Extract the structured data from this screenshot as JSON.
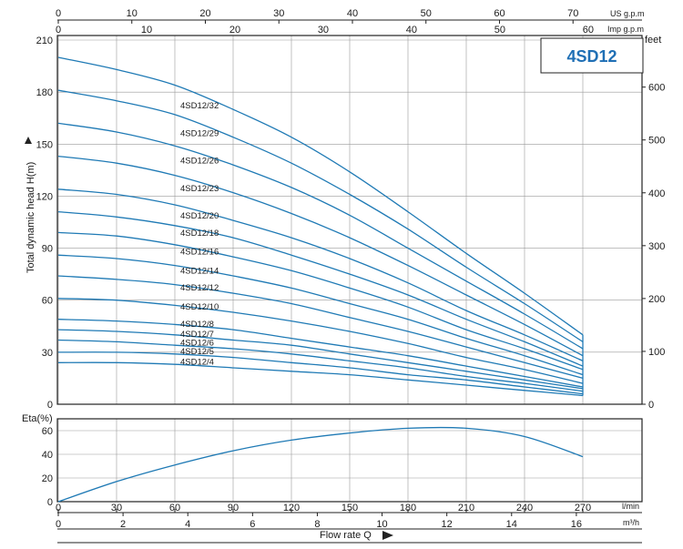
{
  "chart_data": [
    {
      "type": "line",
      "title": "4SD12",
      "ylabel": "Total dynamic head H(m)",
      "ylim": [
        0,
        210
      ],
      "xlim": [
        0,
        270
      ],
      "x_unit": "l/min",
      "y_ticks": [
        0,
        30,
        60,
        90,
        120,
        150,
        180,
        210
      ],
      "right_axis": {
        "label": "feet",
        "ticks": [
          0,
          100,
          200,
          300,
          400,
          500,
          600
        ]
      },
      "top_axes": [
        {
          "label": "US g.p.m",
          "ticks": [
            0,
            10,
            20,
            30,
            40,
            50,
            60,
            70
          ]
        },
        {
          "label": "Imp g.p.m",
          "ticks": [
            0,
            10,
            20,
            30,
            40,
            50,
            60
          ]
        }
      ],
      "grid": true,
      "x": [
        0,
        30,
        60,
        90,
        120,
        150,
        180,
        210,
        240,
        270
      ],
      "series": [
        {
          "name": "4SD12/32",
          "values": [
            200,
            193,
            184,
            170,
            154,
            134,
            111,
            87,
            64,
            40
          ]
        },
        {
          "name": "4SD12/29",
          "values": [
            181,
            175,
            167,
            154,
            139,
            121,
            101,
            79,
            58,
            36
          ]
        },
        {
          "name": "4SD12/26",
          "values": [
            162,
            157,
            149,
            138,
            125,
            109,
            90,
            71,
            52,
            32
          ]
        },
        {
          "name": "4SD12/23",
          "values": [
            143,
            139,
            132,
            122,
            110,
            96,
            80,
            63,
            46,
            28
          ]
        },
        {
          "name": "4SD12/20",
          "values": [
            124,
            121,
            115,
            106,
            96,
            84,
            70,
            54,
            40,
            25
          ]
        },
        {
          "name": "4SD12/18",
          "values": [
            111,
            108,
            103,
            96,
            86,
            75,
            63,
            49,
            36,
            22
          ]
        },
        {
          "name": "4SD12/16",
          "values": [
            99,
            97,
            92,
            85,
            77,
            67,
            56,
            43,
            32,
            20
          ]
        },
        {
          "name": "4SD12/14",
          "values": [
            86,
            84,
            80,
            74,
            67,
            58,
            49,
            38,
            28,
            17
          ]
        },
        {
          "name": "4SD12/12",
          "values": [
            74,
            72,
            69,
            64,
            58,
            50,
            42,
            33,
            24,
            15
          ]
        },
        {
          "name": "4SD12/10",
          "values": [
            61,
            60,
            57,
            53,
            48,
            42,
            35,
            27,
            20,
            12
          ]
        },
        {
          "name": "4SD12/8",
          "values": [
            49,
            48,
            46,
            43,
            38,
            33,
            28,
            22,
            16,
            10
          ]
        },
        {
          "name": "4SD12/7",
          "values": [
            43,
            42,
            40,
            37,
            34,
            29,
            24,
            19,
            14,
            9
          ]
        },
        {
          "name": "4SD12/6",
          "values": [
            37,
            36,
            34,
            32,
            29,
            25,
            21,
            16,
            12,
            7.5
          ]
        },
        {
          "name": "4SD12/5",
          "values": [
            30,
            30,
            29,
            27,
            24,
            21,
            17,
            14,
            10,
            6
          ]
        },
        {
          "name": "4SD12/4",
          "values": [
            24,
            24,
            23,
            21,
            19,
            17,
            14,
            11,
            8,
            5
          ]
        }
      ]
    },
    {
      "type": "line",
      "ylabel": "Eta(%)",
      "ylim": [
        0,
        70
      ],
      "y_ticks": [
        0,
        20,
        40,
        60
      ],
      "xlim": [
        0,
        270
      ],
      "xlabel": "Flow rate Q",
      "x_axes": [
        {
          "unit": "l/min",
          "ticks": [
            0,
            30,
            60,
            90,
            120,
            150,
            180,
            210,
            240,
            270
          ]
        },
        {
          "unit": "m³/h",
          "ticks": [
            0,
            2,
            4,
            6,
            8,
            10,
            12,
            14,
            16
          ]
        }
      ],
      "grid": true,
      "x": [
        0,
        30,
        60,
        90,
        120,
        150,
        180,
        210,
        240,
        270
      ],
      "series": [
        {
          "values": [
            0,
            17,
            31,
            43,
            52,
            58,
            62,
            62,
            55,
            38
          ]
        }
      ]
    }
  ],
  "colors": {
    "curve": "#1f7ab5",
    "grid": "#9a9a9a",
    "frame": "#222222",
    "title": "#1f6fb5"
  },
  "icons": [
    "up-arrow-icon",
    "right-arrow-icon"
  ]
}
